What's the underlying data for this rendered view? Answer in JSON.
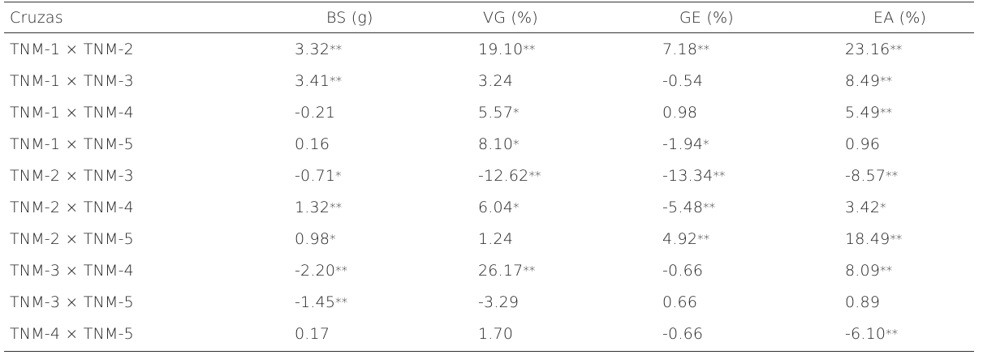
{
  "table": {
    "headers": {
      "label": "Cruzas",
      "bs": "BS (g)",
      "vg": "VG (%)",
      "ge": "GE (%)",
      "ea": "EA (%)"
    },
    "rows": [
      {
        "cross": "TNM-1 × TNM-2",
        "bs": {
          "v": "3.32",
          "s": "**"
        },
        "vg": {
          "v": "19.10",
          "s": "**"
        },
        "ge": {
          "v": "7.18",
          "s": "**"
        },
        "ea": {
          "v": "23.16",
          "s": "**"
        }
      },
      {
        "cross": "TNM-1 × TNM-3",
        "bs": {
          "v": "3.41",
          "s": "**"
        },
        "vg": {
          "v": "3.24",
          "s": ""
        },
        "ge": {
          "v": "-0.54",
          "s": ""
        },
        "ea": {
          "v": "8.49",
          "s": "**"
        }
      },
      {
        "cross": "TNM-1 × TNM-4",
        "bs": {
          "v": "-0.21",
          "s": ""
        },
        "vg": {
          "v": "5.57",
          "s": "*"
        },
        "ge": {
          "v": "0.98",
          "s": ""
        },
        "ea": {
          "v": "5.49",
          "s": "**"
        }
      },
      {
        "cross": "TNM-1 × TNM-5",
        "bs": {
          "v": "0.16",
          "s": ""
        },
        "vg": {
          "v": "8.10",
          "s": "*"
        },
        "ge": {
          "v": "-1.94",
          "s": "*"
        },
        "ea": {
          "v": "0.96",
          "s": ""
        }
      },
      {
        "cross": "TNM-2 × TNM-3",
        "bs": {
          "v": "-0.71",
          "s": "*"
        },
        "vg": {
          "v": "-12.62",
          "s": "**"
        },
        "ge": {
          "v": "-13.34",
          "s": "**"
        },
        "ea": {
          "v": "-8.57",
          "s": "**"
        }
      },
      {
        "cross": "TNM-2 × TNM-4",
        "bs": {
          "v": "1.32",
          "s": "**"
        },
        "vg": {
          "v": "6.04",
          "s": "*"
        },
        "ge": {
          "v": "-5.48",
          "s": "**"
        },
        "ea": {
          "v": "3.42",
          "s": "*"
        }
      },
      {
        "cross": "TNM-2 × TNM-5",
        "bs": {
          "v": "0.98",
          "s": "*"
        },
        "vg": {
          "v": "1.24",
          "s": ""
        },
        "ge": {
          "v": "4.92",
          "s": "**"
        },
        "ea": {
          "v": "18.49",
          "s": "**"
        }
      },
      {
        "cross": "TNM-3 × TNM-4",
        "bs": {
          "v": "-2.20",
          "s": "**"
        },
        "vg": {
          "v": "26.17",
          "s": "**"
        },
        "ge": {
          "v": "-0.66",
          "s": ""
        },
        "ea": {
          "v": "8.09",
          "s": "**"
        }
      },
      {
        "cross": "TNM-3 × TNM-5",
        "bs": {
          "v": "-1.45",
          "s": "**"
        },
        "vg": {
          "v": "-3.29",
          "s": ""
        },
        "ge": {
          "v": "0.66",
          "s": ""
        },
        "ea": {
          "v": "0.89",
          "s": ""
        }
      },
      {
        "cross": "TNM-4 × TNM-5",
        "bs": {
          "v": "0.17",
          "s": ""
        },
        "vg": {
          "v": "1.70",
          "s": ""
        },
        "ge": {
          "v": "-0.66",
          "s": ""
        },
        "ea": {
          "v": "-6.10",
          "s": "**"
        }
      }
    ]
  }
}
